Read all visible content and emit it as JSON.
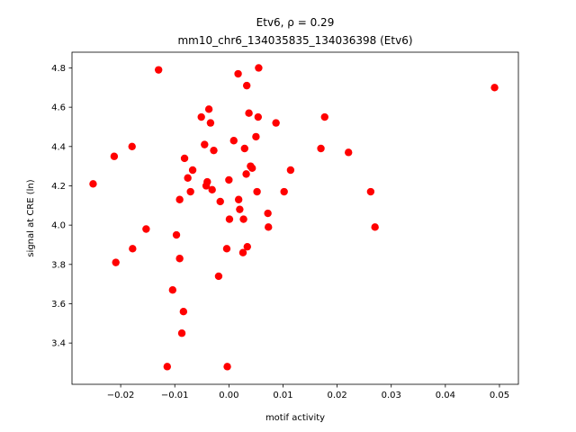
{
  "chart_data": {
    "type": "scatter",
    "title_line1": "Etv6, ρ = 0.29",
    "title_line2": "mm10_chr6_134035835_134036398 (Etv6)",
    "xlabel": "motif activity",
    "ylabel": "signal at CRE (ln)",
    "xlim": [
      -0.029,
      0.0535
    ],
    "ylim": [
      3.19,
      4.88
    ],
    "xticks": [
      -0.02,
      -0.01,
      0.0,
      0.01,
      0.02,
      0.03,
      0.04,
      0.05
    ],
    "xtick_labels": [
      "−0.02",
      "−0.01",
      "0.00",
      "0.01",
      "0.02",
      "0.03",
      "0.04",
      "0.05"
    ],
    "yticks": [
      3.4,
      3.6,
      3.8,
      4.0,
      4.2,
      4.4,
      4.6,
      4.8
    ],
    "ytick_labels": [
      "3.4",
      "3.6",
      "3.8",
      "4.0",
      "4.2",
      "4.4",
      "4.6",
      "4.8"
    ],
    "marker_color": "#ff0000",
    "grid": false,
    "points": [
      {
        "x": -0.0251,
        "y": 4.21
      },
      {
        "x": -0.0209,
        "y": 3.81
      },
      {
        "x": -0.0212,
        "y": 4.35
      },
      {
        "x": -0.0179,
        "y": 4.4
      },
      {
        "x": -0.0178,
        "y": 3.88
      },
      {
        "x": -0.0153,
        "y": 3.98
      },
      {
        "x": -0.013,
        "y": 4.79
      },
      {
        "x": -0.0114,
        "y": 3.28
      },
      {
        "x": -0.0104,
        "y": 3.67
      },
      {
        "x": -0.0097,
        "y": 3.95
      },
      {
        "x": -0.0091,
        "y": 4.13
      },
      {
        "x": -0.0091,
        "y": 3.83
      },
      {
        "x": -0.0087,
        "y": 3.45
      },
      {
        "x": -0.0084,
        "y": 3.56
      },
      {
        "x": -0.0082,
        "y": 4.34
      },
      {
        "x": -0.0076,
        "y": 4.24
      },
      {
        "x": -0.0071,
        "y": 4.17
      },
      {
        "x": -0.0067,
        "y": 4.28
      },
      {
        "x": -0.0051,
        "y": 4.55
      },
      {
        "x": -0.0045,
        "y": 4.41
      },
      {
        "x": -0.0042,
        "y": 4.2
      },
      {
        "x": -0.004,
        "y": 4.22
      },
      {
        "x": -0.0037,
        "y": 4.59
      },
      {
        "x": -0.0034,
        "y": 4.52
      },
      {
        "x": -0.0031,
        "y": 4.18
      },
      {
        "x": -0.0028,
        "y": 4.38
      },
      {
        "x": -0.0019,
        "y": 3.74
      },
      {
        "x": -0.0016,
        "y": 4.12
      },
      {
        "x": -0.0004,
        "y": 3.88
      },
      {
        "x": -0.0003,
        "y": 3.28
      },
      {
        "x": 0.0,
        "y": 4.23
      },
      {
        "x": 0.0001,
        "y": 4.03
      },
      {
        "x": 0.0009,
        "y": 4.43
      },
      {
        "x": 0.0017,
        "y": 4.77
      },
      {
        "x": 0.0018,
        "y": 4.13
      },
      {
        "x": 0.002,
        "y": 4.08
      },
      {
        "x": 0.0026,
        "y": 3.86
      },
      {
        "x": 0.0027,
        "y": 4.03
      },
      {
        "x": 0.0029,
        "y": 4.39
      },
      {
        "x": 0.0032,
        "y": 4.26
      },
      {
        "x": 0.0033,
        "y": 4.71
      },
      {
        "x": 0.0034,
        "y": 3.89
      },
      {
        "x": 0.0037,
        "y": 4.57
      },
      {
        "x": 0.004,
        "y": 4.3
      },
      {
        "x": 0.0043,
        "y": 4.29
      },
      {
        "x": 0.005,
        "y": 4.45
      },
      {
        "x": 0.0052,
        "y": 4.17
      },
      {
        "x": 0.0054,
        "y": 4.55
      },
      {
        "x": 0.0055,
        "y": 4.8
      },
      {
        "x": 0.0072,
        "y": 4.06
      },
      {
        "x": 0.0073,
        "y": 3.99
      },
      {
        "x": 0.0087,
        "y": 4.52
      },
      {
        "x": 0.0102,
        "y": 4.17
      },
      {
        "x": 0.0114,
        "y": 4.28
      },
      {
        "x": 0.017,
        "y": 4.39
      },
      {
        "x": 0.0177,
        "y": 4.55
      },
      {
        "x": 0.0221,
        "y": 4.37
      },
      {
        "x": 0.0262,
        "y": 4.17
      },
      {
        "x": 0.027,
        "y": 3.99
      },
      {
        "x": 0.0491,
        "y": 4.7
      }
    ]
  }
}
